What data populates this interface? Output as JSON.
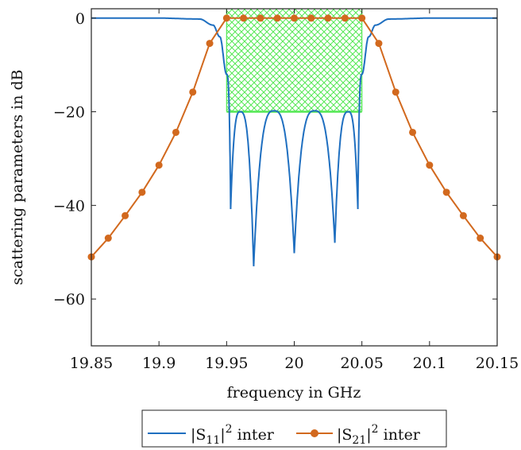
{
  "chart_data": {
    "type": "line",
    "xlabel": "frequency in GHz",
    "ylabel": "scattering parameters in dB",
    "xlim": [
      19.85,
      20.15
    ],
    "ylim": [
      -70,
      2
    ],
    "xticks": [
      19.85,
      19.9,
      19.95,
      20,
      20.05,
      20.1,
      20.15
    ],
    "xtick_labels": [
      "19.85",
      "19.9",
      "19.95",
      "20",
      "20.05",
      "20.1",
      "20.15"
    ],
    "yticks": [
      0,
      -20,
      -40,
      -60
    ],
    "ytick_labels": [
      "0",
      "−20",
      "−40",
      "−60"
    ],
    "grid": false,
    "legend_position": "bottom-outside",
    "spec_mask": {
      "x": [
        19.95,
        20.05
      ],
      "y": [
        -20,
        2
      ],
      "color": "#54e854"
    },
    "series": [
      {
        "name": "|S11|² inter",
        "name_parts": {
          "base": "|S",
          "sub": "11",
          "mid": "|",
          "sup": "2",
          "tail": " inter"
        },
        "color": "#1f6fc0",
        "marker": "none",
        "shape": {
          "x": [
            19.85,
            19.9,
            19.93,
            19.94,
            19.945,
            19.95,
            19.953,
            19.96,
            19.97,
            19.985,
            20.0,
            20.015,
            20.03,
            20.04,
            20.047,
            20.05,
            20.055,
            20.06,
            20.07,
            20.1,
            20.15
          ],
          "y": [
            0,
            0,
            -0.2,
            -1.5,
            -4,
            -12,
            -40.8,
            -20,
            -53,
            -19.8,
            -50.2,
            -19.8,
            -48,
            -20,
            -40.8,
            -12,
            -4,
            -1.5,
            -0.2,
            0,
            0
          ]
        }
      },
      {
        "name": "|S21|² inter",
        "name_parts": {
          "base": "|S",
          "sub": "21",
          "mid": "|",
          "sup": "2",
          "tail": " inter"
        },
        "color": "#d2691e",
        "marker": "circle",
        "x": [
          19.85,
          19.8625,
          19.875,
          19.8875,
          19.9,
          19.9125,
          19.925,
          19.9375,
          19.95,
          19.9625,
          19.975,
          19.9875,
          20.0,
          20.0125,
          20.025,
          20.0375,
          20.05,
          20.0625,
          20.075,
          20.0875,
          20.1,
          20.1125,
          20.125,
          20.1375,
          20.15
        ],
        "values": [
          -51,
          -47,
          -42.2,
          -37.2,
          -31.4,
          -24.4,
          -15.8,
          -5.4,
          0,
          0,
          0,
          0,
          0,
          0,
          0,
          0,
          0,
          -5.4,
          -15.8,
          -24.4,
          -31.4,
          -37.2,
          -42.2,
          -47,
          -51
        ]
      }
    ]
  }
}
